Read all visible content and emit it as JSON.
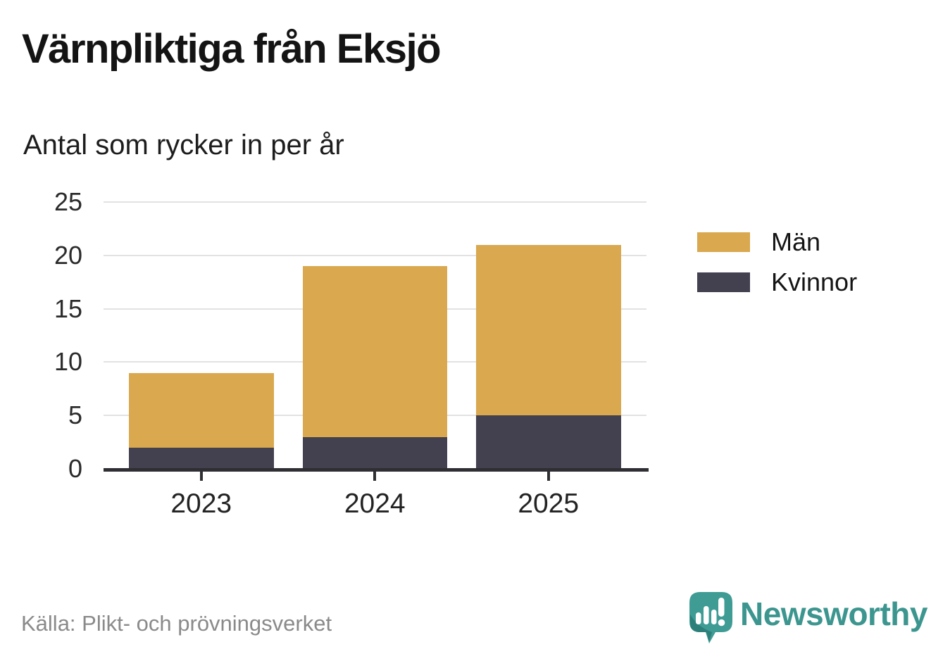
{
  "header": {
    "title": "Värnpliktiga från Eksjö",
    "subtitle": "Antal som rycker in per år"
  },
  "chart_data": {
    "type": "bar",
    "stacked": true,
    "title": "Värnpliktiga från Eksjö",
    "subtitle": "Antal som rycker in per år",
    "categories": [
      "2023",
      "2024",
      "2025"
    ],
    "series": [
      {
        "name": "Män",
        "slug": "man",
        "color": "#D9A84F",
        "values": [
          7,
          16,
          16
        ]
      },
      {
        "name": "Kvinnor",
        "slug": "kvinnor",
        "color": "#434050",
        "values": [
          2,
          3,
          5
        ]
      }
    ],
    "stack_totals": [
      9,
      19,
      21
    ],
    "ylim": [
      0,
      25
    ],
    "yticks": [
      0,
      5,
      10,
      15,
      20,
      25
    ],
    "grid": "horizontal-light",
    "gridline_color": "#e2e2e2",
    "axis_color": "#2f2e33",
    "legend_position": "right"
  },
  "footer": {
    "source": "Källa: Plikt- och prövningsverket",
    "brand": "Newsworthy",
    "brand_color": "#3c968f",
    "icon_color": "#3e9c95"
  }
}
